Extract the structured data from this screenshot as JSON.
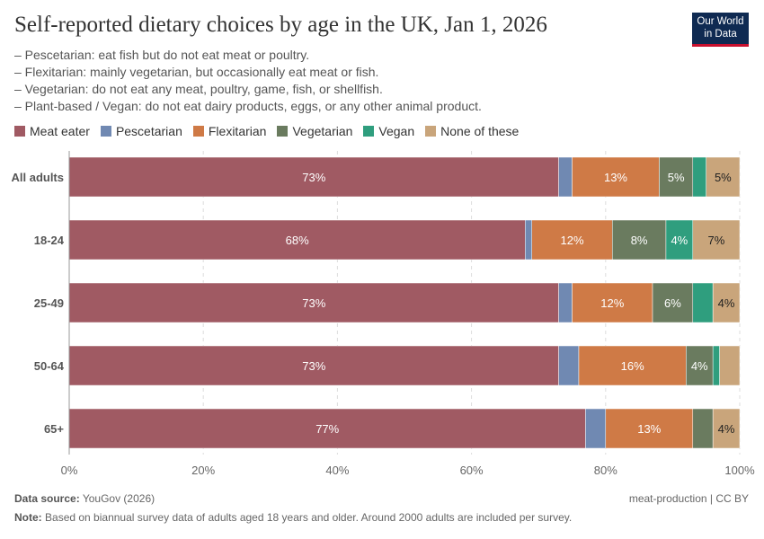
{
  "header": {
    "title": "Self-reported dietary choices by age in the UK, Jan 1, 2026",
    "notes": [
      "– Pescetarian: eat fish but do not eat meat or poultry.",
      "– Flexitarian: mainly vegetarian, but occasionally eat meat or fish.",
      "– Vegetarian: do not eat any meat, poultry, game, fish, or shellfish.",
      "– Plant-based / Vegan: do not eat dairy products, eggs, or any other animal product."
    ],
    "logo": "Our World in Data"
  },
  "chart_data": {
    "type": "bar",
    "orientation": "horizontal",
    "stacked": true,
    "categories": [
      "All adults",
      "18-24",
      "25-49",
      "50-64",
      "65+"
    ],
    "series": [
      {
        "name": "Meat eater",
        "color": "#a05a63",
        "values": [
          73,
          68,
          73,
          73,
          77
        ]
      },
      {
        "name": "Pescetarian",
        "color": "#7089b2",
        "values": [
          2,
          1,
          2,
          3,
          3
        ]
      },
      {
        "name": "Flexitarian",
        "color": "#cf7a46",
        "values": [
          13,
          12,
          12,
          16,
          13
        ]
      },
      {
        "name": "Vegetarian",
        "color": "#6a7b5f",
        "values": [
          5,
          8,
          6,
          4,
          3
        ]
      },
      {
        "name": "Vegan",
        "color": "#2f9e7e",
        "values": [
          2,
          4,
          3,
          1,
          0
        ]
      },
      {
        "name": "None of these",
        "color": "#c9a57b",
        "values": [
          5,
          7,
          4,
          3,
          4
        ]
      }
    ],
    "xlim": [
      0,
      100
    ],
    "xticks": [
      "0%",
      "20%",
      "40%",
      "60%",
      "80%",
      "100%"
    ],
    "grid": true,
    "legend": "top-left"
  },
  "footer": {
    "source_label": "Data source:",
    "source": "YouGov (2026)",
    "license": "meat-production | CC BY",
    "note_label": "Note:",
    "note": "Based on biannual survey data of adults aged 18 years and older. Around 2000 adults are included per survey."
  }
}
